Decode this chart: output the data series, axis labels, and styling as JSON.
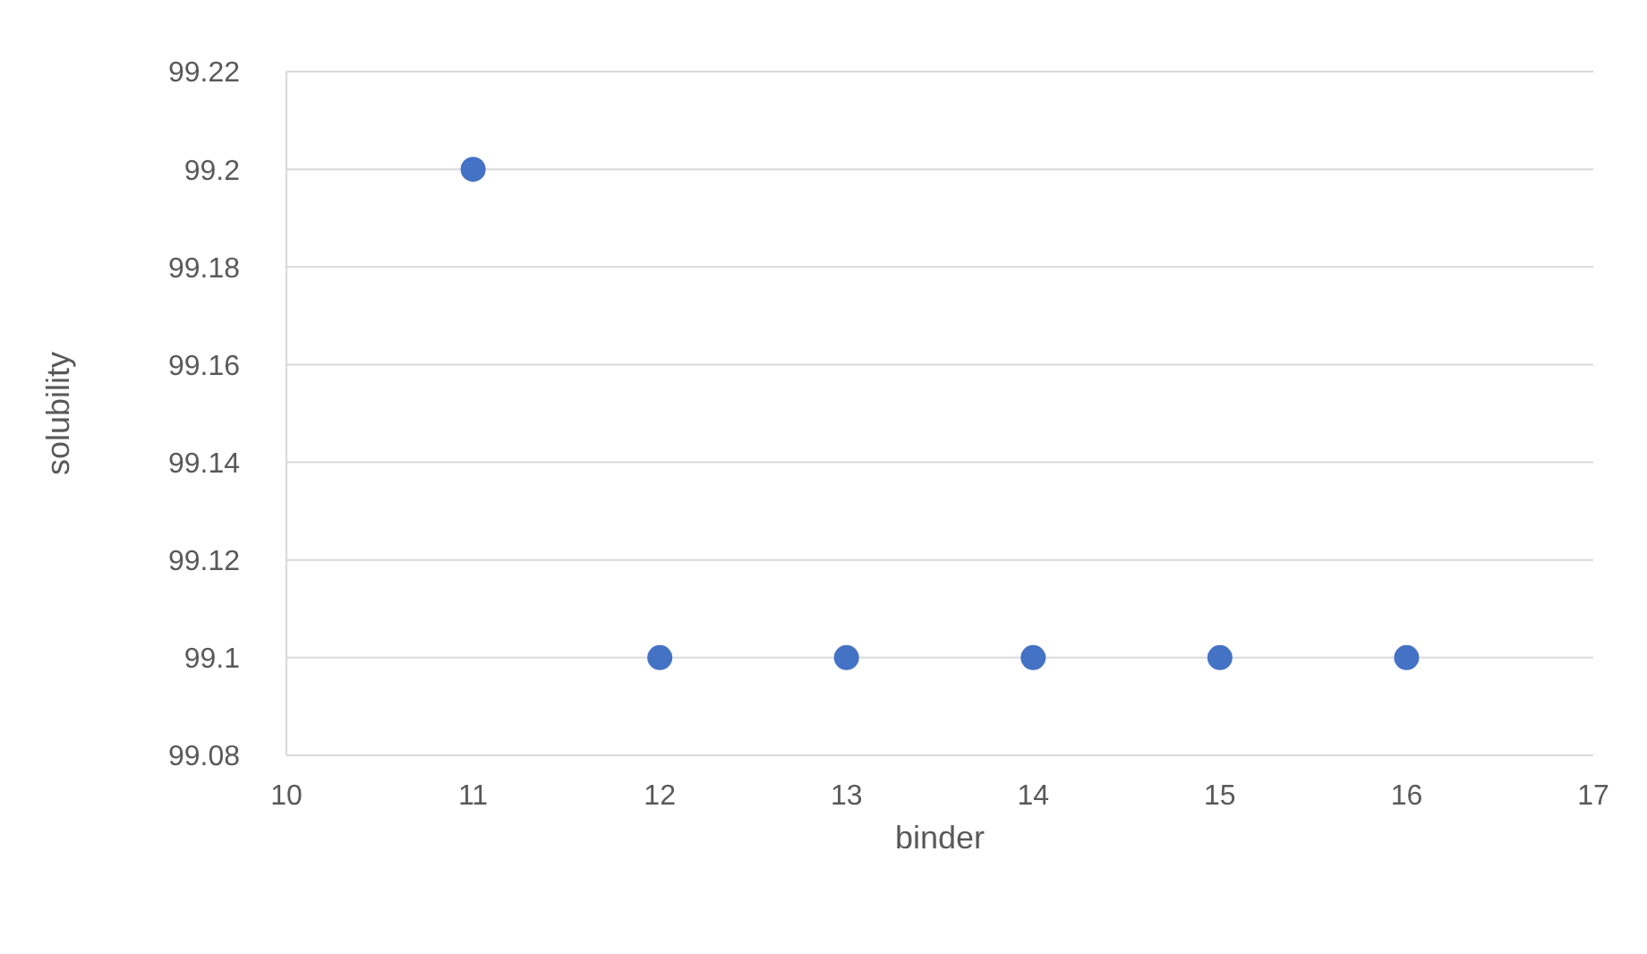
{
  "chart_data": {
    "type": "scatter",
    "xlabel": "binder",
    "ylabel": "solubility",
    "x": [
      11,
      12,
      13,
      14,
      15,
      16
    ],
    "series": [
      {
        "color": "#4472c4",
        "values": [
          99.2,
          99.1,
          99.1,
          99.1,
          99.1,
          99.1
        ]
      }
    ],
    "xlim": [
      10,
      17
    ],
    "xticks": [
      10,
      11,
      12,
      13,
      14,
      15,
      16,
      17
    ],
    "ylim": [
      99.08,
      99.22
    ],
    "yticks": [
      99.08,
      99.1,
      99.12,
      99.14,
      99.16,
      99.18,
      99.2,
      99.22
    ],
    "grid": "y",
    "legend": false,
    "marker": "circle"
  }
}
